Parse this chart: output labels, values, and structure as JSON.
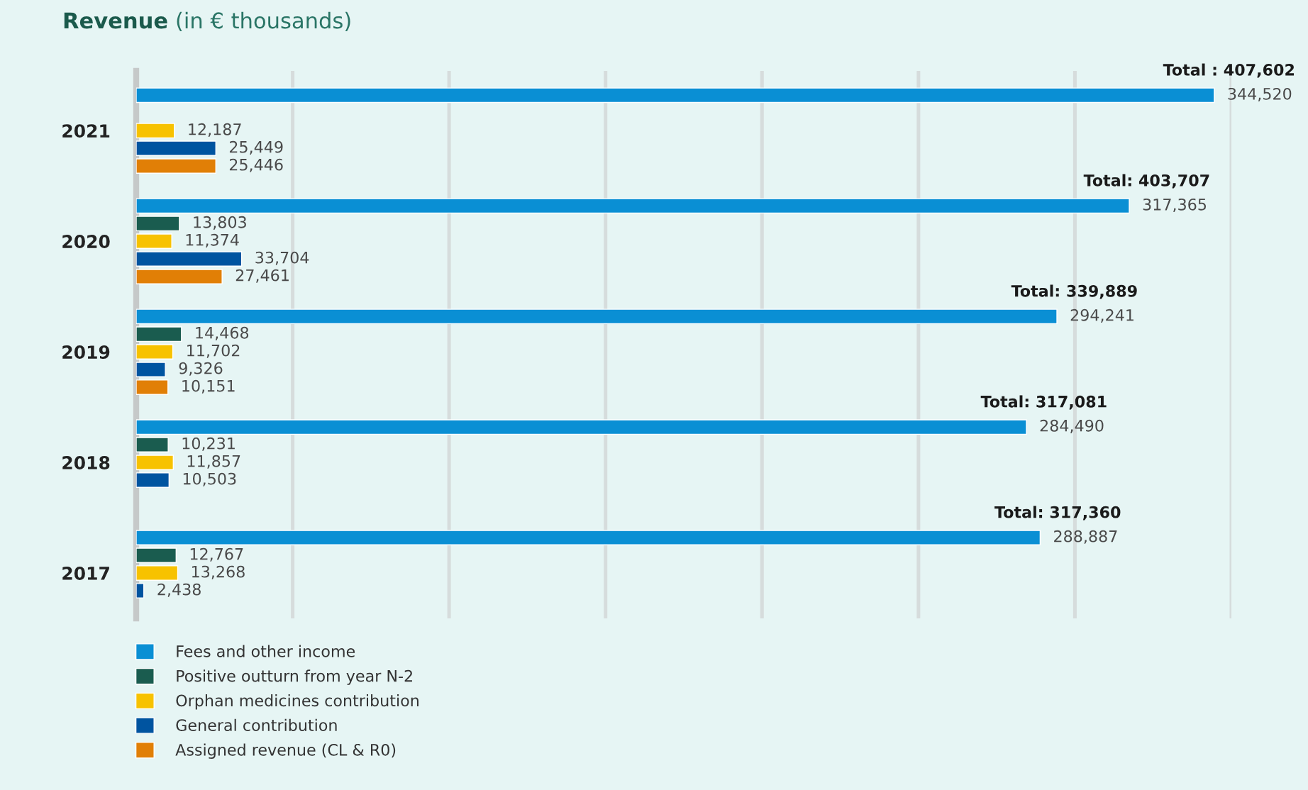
{
  "chart_data": {
    "type": "bar",
    "orientation": "horizontal",
    "title": "Revenue (in € thousands)",
    "categories": [
      "2021",
      "2020",
      "2019",
      "2018",
      "2017"
    ],
    "series": [
      {
        "name": "Fees and other income",
        "color": "#0a8fd4",
        "values": [
          344520,
          317365,
          294241,
          284490,
          288887
        ],
        "value_labels": [
          "344,520",
          "317,365",
          "294,241",
          "284,490",
          "288,887"
        ]
      },
      {
        "name": "Positive outturn from year N-2",
        "color": "#1a5c4f",
        "values": [
          null,
          13803,
          14468,
          10231,
          12767
        ],
        "value_labels": [
          null,
          "13,803",
          "14,468",
          "10,231",
          "12,767"
        ]
      },
      {
        "name": "Orphan medicines contribution",
        "color": "#f7c200",
        "values": [
          12187,
          11374,
          11702,
          11857,
          13268
        ],
        "value_labels": [
          "12,187",
          "11,374",
          "11,702",
          "11,857",
          "13,268"
        ]
      },
      {
        "name": "General contribution",
        "color": "#0054a0",
        "values": [
          25449,
          33704,
          9326,
          10503,
          2438
        ],
        "value_labels": [
          "25,449",
          "33,704",
          "9,326",
          "10,503",
          "2,438"
        ]
      },
      {
        "name": "Assigned revenue (CL & R0)",
        "color": "#e17f06",
        "values": [
          25446,
          27461,
          10151,
          null,
          null
        ],
        "value_labels": [
          "25,446",
          "27,461",
          "10,151",
          null,
          null
        ]
      }
    ],
    "totals": [
      "Total : 407,602",
      "Total: 403,707",
      "Total: 339,889",
      "Total: 317,081",
      "Total: 317,360"
    ],
    "xlim": [
      0,
      350000
    ],
    "xticks": [
      {
        "value": 0,
        "label": null
      },
      {
        "value": 50000,
        "label": null
      },
      {
        "value": 100000,
        "label": null
      },
      {
        "value": 150000,
        "label": null
      },
      {
        "value": 200000,
        "label": null
      },
      {
        "value": 250000,
        "label": null
      },
      {
        "value": 300000,
        "label": null
      },
      {
        "value": 350000,
        "label": null
      }
    ],
    "tick_labels": "y",
    "grid": "x",
    "legend": "bottom left"
  }
}
